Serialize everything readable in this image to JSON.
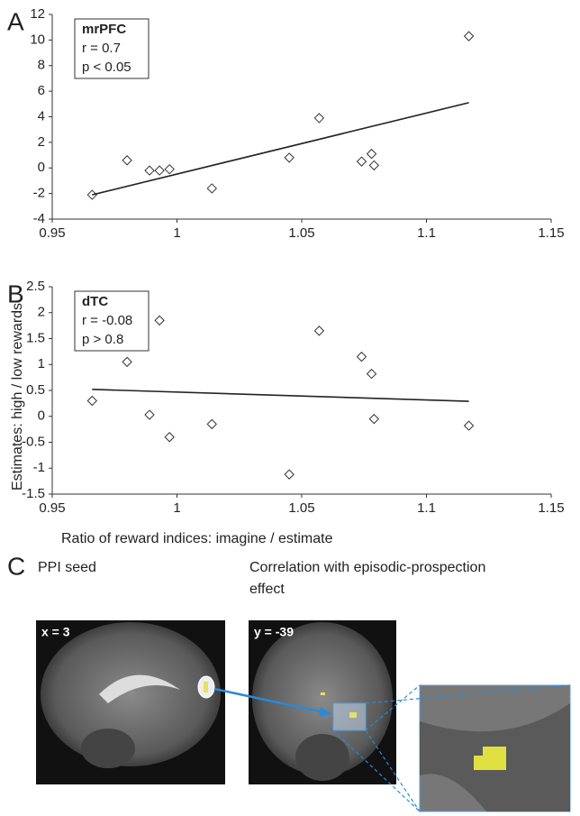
{
  "chart_data": [
    {
      "type": "scatter",
      "panel_label": "A",
      "annotations": [
        "mrPFC",
        "r = 0.7",
        "p < 0.05"
      ],
      "x": [
        0.966,
        0.98,
        0.989,
        0.993,
        0.997,
        1.014,
        1.045,
        1.057,
        1.074,
        1.078,
        1.079,
        1.117
      ],
      "values": [
        -2.1,
        0.6,
        -0.2,
        -0.2,
        -0.1,
        -1.6,
        0.8,
        3.9,
        0.5,
        1.1,
        0.2,
        10.3
      ],
      "trend": {
        "x": [
          0.966,
          1.117
        ],
        "values": [
          -2.1,
          5.1
        ]
      },
      "xlim": [
        0.95,
        1.15
      ],
      "xticks": [
        0.95,
        1,
        1.05,
        1.1,
        1.15
      ],
      "ylim": [
        -4,
        12
      ],
      "yticks": [
        -4,
        -2,
        0,
        2,
        4,
        6,
        8,
        10,
        12
      ]
    },
    {
      "type": "scatter",
      "panel_label": "B",
      "annotations": [
        "dTC",
        "r = -0.08",
        "p > 0.8"
      ],
      "xlabel": "Ratio of reward indices: imagine / estimate",
      "ylabel": "Estimates: high / low rewards",
      "x": [
        0.966,
        0.98,
        0.989,
        0.993,
        0.997,
        1.014,
        1.045,
        1.057,
        1.074,
        1.078,
        1.079,
        1.117
      ],
      "values": [
        0.3,
        1.05,
        0.03,
        1.85,
        -0.4,
        -0.15,
        -1.12,
        1.65,
        1.15,
        0.82,
        -0.05,
        -0.18
      ],
      "trend": {
        "x": [
          0.966,
          1.117
        ],
        "values": [
          0.52,
          0.29
        ]
      },
      "xlim": [
        0.95,
        1.15
      ],
      "xticks": [
        0.95,
        1,
        1.05,
        1.1,
        1.15
      ],
      "ylim": [
        -1.5,
        2.5
      ],
      "yticks": [
        -1.5,
        -1,
        -0.5,
        0,
        0.5,
        1,
        1.5,
        2,
        2.5
      ]
    }
  ],
  "panel_c": {
    "label": "C",
    "left_title": "PPI seed",
    "right_title": "Correlation with episodic-prospection effect",
    "left_slice": "x = 3",
    "right_slice": "y = -39"
  }
}
